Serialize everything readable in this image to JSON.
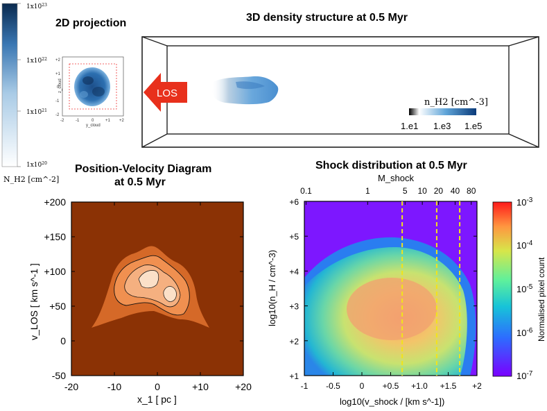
{
  "chart_data": [
    {
      "type": "heatmap",
      "title": "2D projection",
      "colorbar_label": "N_H2 [cm^-2]",
      "colorbar_ticks": [
        "1x10^23",
        "1x10^22",
        "1x10^21",
        "1x10^20"
      ],
      "colorbar_ticks_text": {
        "t23": "1x10",
        "e23": "23",
        "t22": "1x10",
        "e22": "22",
        "t21": "1x10",
        "e21": "21",
        "t20": "1x10",
        "e20": "20"
      },
      "inset_axes": {
        "xlabel": "y_cloud",
        "ylabel": "z_cloud",
        "xticks": [
          "-2",
          "-1",
          "0",
          "+1",
          "+2"
        ],
        "yticks": [
          "+2",
          "+1",
          "0",
          "-1",
          "-2"
        ]
      }
    },
    {
      "type": "heatmap",
      "title": "3D density structure at 0.5 Myr",
      "arrow_label": "LOS",
      "colorbar_label": "n_H2 [cm^-3]",
      "colorbar_ticks": [
        "1.e1",
        "1.e3",
        "1.e5"
      ]
    },
    {
      "type": "heatmap",
      "title_line1": "Position-Velocity Diagram",
      "title_line2": "at 0.5 Myr",
      "xlabel": "x_1 [ pc ]",
      "ylabel": "v_LOS [ km s^-1 ]",
      "xlim": [
        -20,
        20
      ],
      "ylim": [
        -50,
        200
      ],
      "xticks": [
        -20,
        -10,
        0,
        10,
        20
      ],
      "xtick_labels": [
        "-20",
        "-10",
        "0",
        "+10",
        "+20"
      ],
      "yticks": [
        -50,
        0,
        50,
        100,
        150,
        200
      ],
      "ytick_labels": [
        "-50",
        "0",
        "+50",
        "+100",
        "+150",
        "+200"
      ]
    },
    {
      "type": "heatmap",
      "title": "Shock distribution at 0.5 Myr",
      "xlabel": "log10(v_shock / [km s^-1])",
      "ylabel": "log10(n_H / cm^-3)",
      "top_xlabel": "M_shock",
      "xlim": [
        -1,
        2
      ],
      "ylim": [
        1,
        6
      ],
      "xticks": [
        -1,
        -0.5,
        0,
        0.5,
        1.0,
        1.5,
        2
      ],
      "xtick_labels": [
        "-1",
        "-0.5",
        "0",
        "+0.5",
        "+1.0",
        "+1.5",
        "+2"
      ],
      "yticks": [
        1,
        2,
        3,
        4,
        5,
        6
      ],
      "ytick_labels": [
        "+1",
        "+2",
        "+3",
        "+4",
        "+5",
        "+6"
      ],
      "top_ticks": [
        {
          "label": "0.1",
          "logv": -0.97
        },
        {
          "label": "1",
          "logv": 0.1
        },
        {
          "label": "5",
          "logv": 0.75
        },
        {
          "label": "10",
          "logv": 1.05
        },
        {
          "label": "20",
          "logv": 1.33
        },
        {
          "label": "40",
          "logv": 1.62
        },
        {
          "label": "80",
          "logv": 1.9
        }
      ],
      "dashed_lines_logv": [
        0.7,
        1.3,
        1.7
      ],
      "colorbar_label": "Normalised pixel count",
      "colorbar_ticks": [
        "10^-3",
        "10^-4",
        "10^-5",
        "10^-6",
        "10^-7"
      ],
      "colorbar_ticks_text": {
        "base": "10",
        "e3": "-3",
        "e4": "-4",
        "e5": "-5",
        "e6": "-6",
        "e7": "-7"
      }
    }
  ]
}
